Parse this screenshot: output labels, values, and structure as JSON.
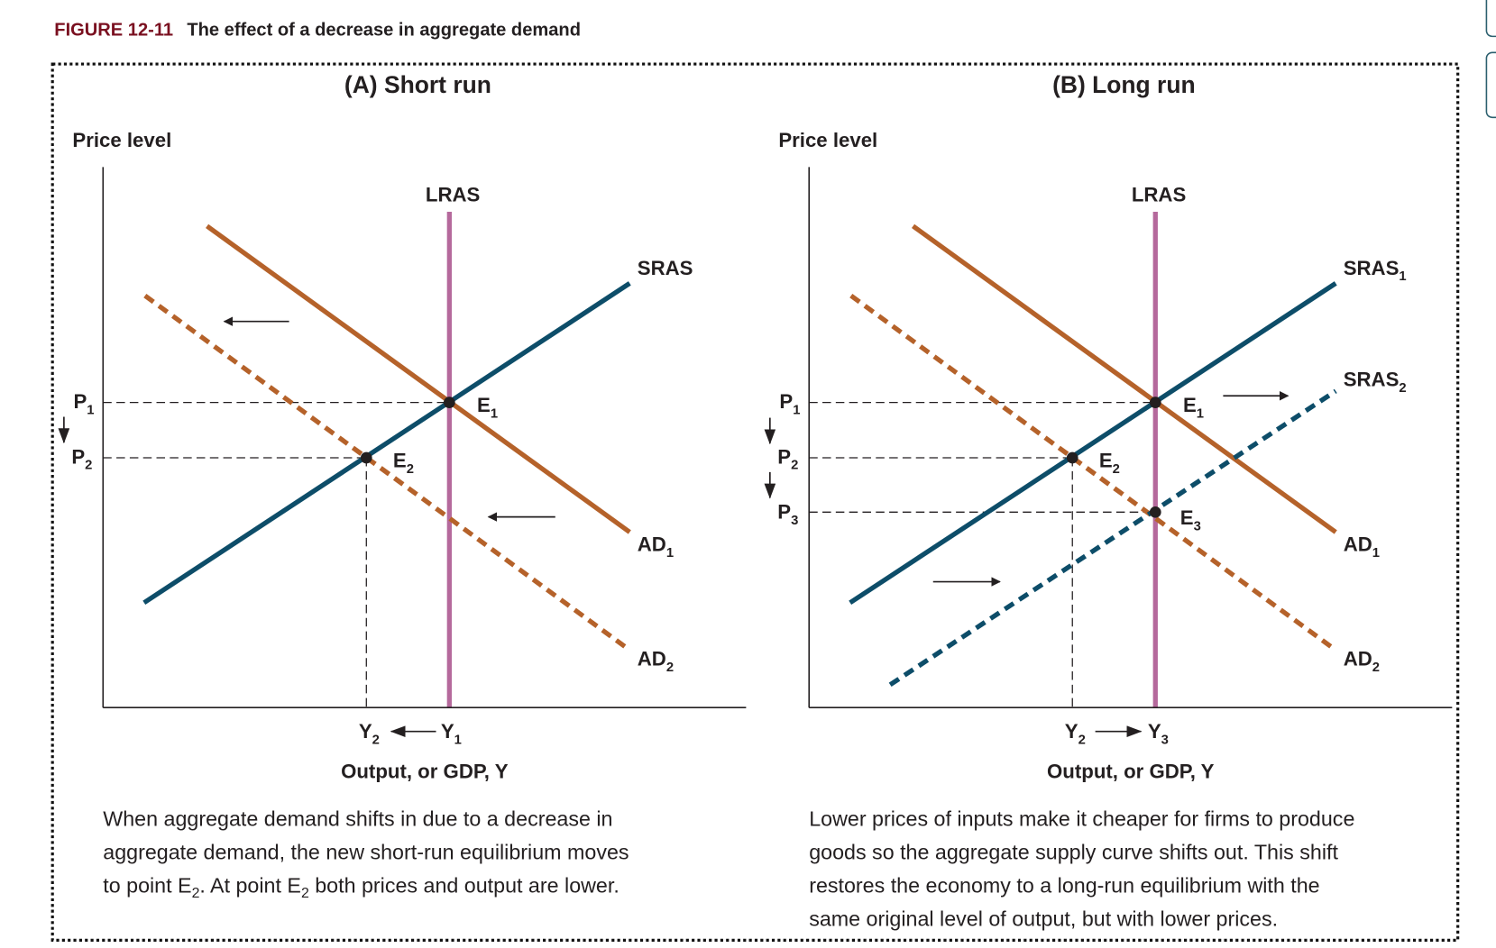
{
  "figure": {
    "number": "FIGURE 12-11",
    "title": "The effect of a decrease in aggregate demand"
  },
  "colors": {
    "aggregate_demand": "#b5622a",
    "short_run_supply": "#0d4d69",
    "long_run_supply": "#b5699c",
    "figure_number": "#7a1020"
  },
  "panel_a": {
    "title": "(A) Short run",
    "y_axis_label": "Price level",
    "x_axis_label": "Output, or GDP, Y",
    "lras": "LRAS",
    "sras": "SRAS",
    "ad1": {
      "main": "AD",
      "sub": "1"
    },
    "ad2": {
      "main": "AD",
      "sub": "2"
    },
    "e1": {
      "main": "E",
      "sub": "1"
    },
    "e2": {
      "main": "E",
      "sub": "2"
    },
    "p1": {
      "main": "P",
      "sub": "1"
    },
    "p2": {
      "main": "P",
      "sub": "2"
    },
    "y1": {
      "main": "Y",
      "sub": "1"
    },
    "y2": {
      "main": "Y",
      "sub": "2"
    },
    "caption": {
      "line1": "When aggregate demand shifts in due to a decrease in",
      "line2": "aggregate demand, the new short-run equilibrium moves",
      "line3a": "to point E",
      "line3b": "2",
      "line3c": ". At point E",
      "line3d": "2",
      "line3e": " both prices and output are lower."
    }
  },
  "panel_b": {
    "title": "(B) Long run",
    "y_axis_label": "Price level",
    "x_axis_label": "Output, or GDP, Y",
    "lras": "LRAS",
    "sras1": {
      "main": "SRAS",
      "sub": "1"
    },
    "sras2": {
      "main": "SRAS",
      "sub": "2"
    },
    "ad1": {
      "main": "AD",
      "sub": "1"
    },
    "ad2": {
      "main": "AD",
      "sub": "2"
    },
    "e1": {
      "main": "E",
      "sub": "1"
    },
    "e2": {
      "main": "E",
      "sub": "2"
    },
    "e3": {
      "main": "E",
      "sub": "3"
    },
    "p1": {
      "main": "P",
      "sub": "1"
    },
    "p2": {
      "main": "P",
      "sub": "2"
    },
    "p3": {
      "main": "P",
      "sub": "3"
    },
    "y2": {
      "main": "Y",
      "sub": "2"
    },
    "y3": {
      "main": "Y",
      "sub": "3"
    },
    "caption": {
      "line1": "Lower prices of inputs make it cheaper for firms to produce",
      "line2": "goods so the aggregate supply curve shifts out. This shift",
      "line3": "restores the economy to a long-run equilibrium with the",
      "line4": "same original level of output, but with lower prices."
    }
  }
}
